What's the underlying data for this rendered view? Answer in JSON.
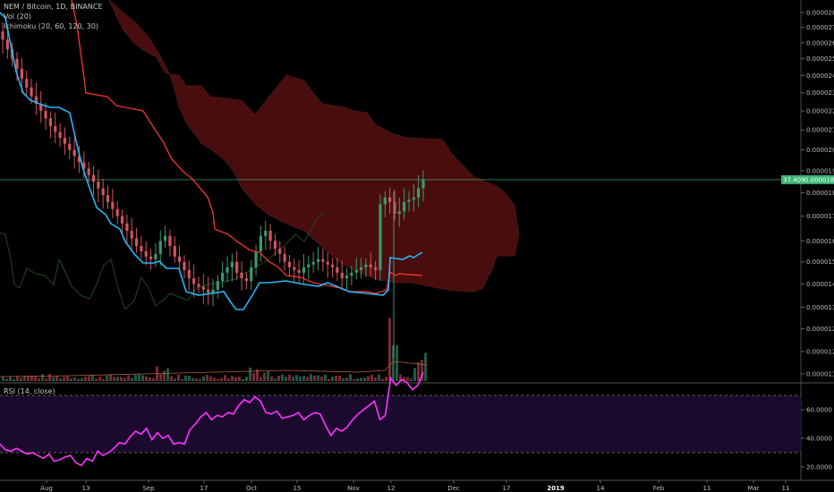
{
  "legend": {
    "symbol": "NEM / Bitcoin, 1D, BINANCE",
    "vol": "Vol (20)",
    "ichimoku": "Ichimoku (20, 60, 120, 30)",
    "rsi": "RSI (14, close)"
  },
  "colors": {
    "background": "#000000",
    "up": "#3a9a72",
    "down": "#d2545f",
    "tenkan": "#29b6f6",
    "kijun": "#e8332d",
    "cloud": "#4a0d0d",
    "cloud_edge": "#3d1717",
    "lagging": "#1e4a1e",
    "rsi_line": "#ff35ff",
    "rsi_band": "#1c0a2e",
    "price_line": "#3a9a72",
    "badge": "#3bb273"
  },
  "price_badge": {
    "label": "37.409",
    "value": "0.00001859"
  },
  "chart_data": [
    {
      "type": "candlestick",
      "title": "NEM / Bitcoin, 1D, BINANCE",
      "y_axis": {
        "scale": "log",
        "tick_labels": [
          "0.00002800",
          "0.00002700",
          "0.00002600",
          "0.00002500",
          "0.00002400",
          "0.00002300",
          "0.00002200",
          "0.00002100",
          "0.00002000",
          "0.00001900",
          "0.00001800",
          "0.00001700",
          "0.00001600",
          "0.00001520",
          "0.00001440",
          "0.00001360",
          "0.00001290",
          "0.00001220",
          "0.00001155"
        ],
        "tick_values": [
          2.8e-05,
          2.7e-05,
          2.6e-05,
          2.5e-05,
          2.4e-05,
          2.3e-05,
          2.2e-05,
          2.1e-05,
          2e-05,
          1.9e-05,
          1.8e-05,
          1.7e-05,
          1.6e-05,
          1.52e-05,
          1.44e-05,
          1.36e-05,
          1.29e-05,
          1.22e-05,
          1.155e-05
        ]
      },
      "x_axis": {
        "tick_labels": [
          "Aug",
          "13",
          "Sep",
          "17",
          "Oct",
          "15",
          "Nov",
          "12",
          "Dec",
          "17",
          "2019",
          "14",
          "Feb",
          "11",
          "Mar",
          "11"
        ],
        "bold_labels": [
          "2019"
        ]
      },
      "last_close": 1.859e-05,
      "series": [
        {
          "name": "Price (close, approx.)",
          "values": [
            2.62e-05,
            2.56e-05,
            2.5e-05,
            2.44e-05,
            2.38e-05,
            2.33e-05,
            2.28e-05,
            2.24e-05,
            2.2e-05,
            2.16e-05,
            2.12e-05,
            2.09e-05,
            2.06e-05,
            2.03e-05,
            2e-05,
            1.97e-05,
            1.94e-05,
            1.91e-05,
            1.88e-05,
            1.85e-05,
            1.82e-05,
            1.79e-05,
            1.76e-05,
            1.73e-05,
            1.7e-05,
            1.67e-05,
            1.64e-05,
            1.61e-05,
            1.58e-05,
            1.56e-05,
            1.54e-05,
            1.53e-05,
            1.55e-05,
            1.6e-05,
            1.62e-05,
            1.58e-05,
            1.54e-05,
            1.52e-05,
            1.49e-05,
            1.46e-05,
            1.44e-05,
            1.43e-05,
            1.42e-05,
            1.41e-05,
            1.42e-05,
            1.45e-05,
            1.48e-05,
            1.5e-05,
            1.52e-05,
            1.48e-05,
            1.46e-05,
            1.45e-05,
            1.5e-05,
            1.56e-05,
            1.62e-05,
            1.64e-05,
            1.6e-05,
            1.57e-05,
            1.55e-05,
            1.52e-05,
            1.5e-05,
            1.49e-05,
            1.48e-05,
            1.5e-05,
            1.51e-05,
            1.52e-05,
            1.53e-05,
            1.52e-05,
            1.51e-05,
            1.5e-05,
            1.48e-05,
            1.46e-05,
            1.47e-05,
            1.48e-05,
            1.49e-05,
            1.5e-05,
            1.51e-05,
            1.5e-05,
            1.49e-05,
            1.75e-05,
            1.78e-05,
            1.76e-05,
            1.71e-05,
            1.72e-05,
            1.76e-05,
            1.77e-05,
            1.78e-05,
            1.82e-05,
            1.859e-05
          ]
        },
        {
          "name": "Tenkan (approx.)",
          "values": [
            2.8e-05,
            2.72e-05,
            2.55e-05,
            2.42e-05,
            2.32e-05,
            2.2e-05,
            2.05e-05,
            1.93e-05,
            1.8e-05,
            1.72e-05,
            1.62e-05,
            1.58e-05,
            1.6e-05,
            1.62e-05,
            1.5e-05,
            1.5e-05,
            1.51e-05,
            1.47e-05,
            1.5e-05,
            1.52e-05,
            1.56e-05,
            1.57e-05,
            1.5e-05,
            1.51e-05,
            1.52e-05,
            1.54e-05,
            1.51e-05,
            1.52e-05,
            1.53e-05,
            1.73e-05,
            1.74e-05,
            1.7e-05,
            1.71e-05,
            1.72e-05
          ]
        },
        {
          "name": "Kijun (approx.)",
          "values": [
            2.85e-05,
            2.7e-05,
            2.55e-05,
            2.35e-05,
            2.28e-05,
            2.26e-05,
            2.2e-05,
            2.1e-05,
            2e-05,
            1.88e-05,
            1.78e-05,
            1.72e-05,
            1.69e-05,
            1.67e-05,
            1.63e-05,
            1.59e-05,
            1.56e-05,
            1.54e-05,
            1.54e-05,
            1.53e-05,
            1.52e-05,
            1.52e-05,
            1.52e-05,
            1.53e-05,
            1.54e-05
          ]
        }
      ]
    },
    {
      "type": "line",
      "title": "RSI (14, close)",
      "y_axis": {
        "tick_labels": [
          "60.0000",
          "40.0000",
          "20.0000"
        ],
        "tick_values": [
          60,
          40,
          20
        ],
        "band": [
          30,
          70
        ]
      },
      "series": [
        {
          "name": "RSI (approx.)",
          "values": [
            36,
            32,
            31,
            33,
            31,
            29,
            30,
            28,
            26,
            29,
            24,
            25,
            27,
            28,
            23,
            21,
            26,
            24,
            31,
            28,
            30,
            33,
            37,
            36,
            41,
            45,
            43,
            47,
            39,
            44,
            40,
            42,
            36,
            37,
            36,
            46,
            50,
            55,
            58,
            53,
            56,
            55,
            58,
            57,
            63,
            67,
            65,
            69,
            66,
            58,
            57,
            59,
            54,
            55,
            56,
            58,
            53,
            56,
            58,
            57,
            49,
            42,
            47,
            45,
            48,
            53,
            57,
            60,
            63,
            66,
            53,
            56,
            82,
            77,
            81,
            79,
            74,
            77,
            86
          ]
        }
      ]
    }
  ]
}
